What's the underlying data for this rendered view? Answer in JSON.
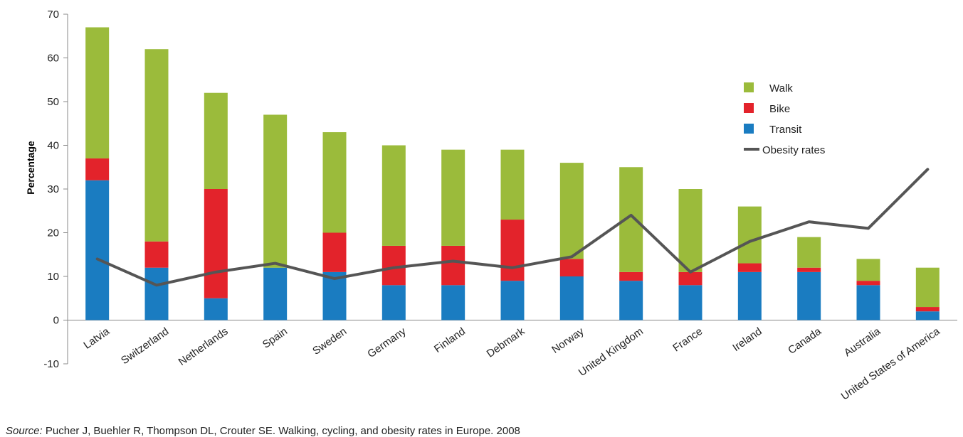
{
  "chart_data": {
    "type": "bar",
    "stacked": true,
    "title": "",
    "xlabel": "",
    "ylabel": "Percentage",
    "ylim": [
      -10,
      70
    ],
    "yticks": [
      -10,
      0,
      10,
      20,
      30,
      40,
      50,
      60,
      70
    ],
    "categories": [
      "Latvia",
      "Switzerland",
      "Netherlands",
      "Spain",
      "Sweden",
      "Germany",
      "Finland",
      "Debmark",
      "Norway",
      "United Kingdom",
      "France",
      "Ireland",
      "Canada",
      "Australia",
      "United States of America"
    ],
    "series": [
      {
        "name": "Transit",
        "kind": "bar",
        "color": "#1a7cc1",
        "values": [
          32,
          12,
          5,
          12,
          11,
          8,
          8,
          9,
          10,
          9,
          8,
          11,
          11,
          8,
          2
        ]
      },
      {
        "name": "Bike",
        "kind": "bar",
        "color": "#e3232b",
        "values": [
          5,
          6,
          25,
          0,
          9,
          9,
          9,
          14,
          4,
          2,
          3,
          2,
          1,
          1,
          1
        ]
      },
      {
        "name": "Walk",
        "kind": "bar",
        "color": "#9bbb3b",
        "values": [
          30,
          44,
          22,
          35,
          23,
          23,
          22,
          16,
          22,
          24,
          19,
          13,
          7,
          5,
          9
        ]
      },
      {
        "name": "Obesity rates",
        "kind": "line",
        "color": "#555555",
        "values": [
          14,
          8,
          11,
          13,
          9.5,
          12,
          13.5,
          12,
          14.5,
          24,
          11,
          18,
          22.5,
          21,
          34.5
        ]
      }
    ],
    "legend": {
      "position": "right",
      "order": [
        "Walk",
        "Bike",
        "Transit",
        "Obesity rates"
      ]
    },
    "grid": false
  },
  "source": {
    "label": "Source:",
    "text": "Pucher J, Buehler R, Thompson DL, Crouter SE. Walking, cycling, and obesity rates in Europe. 2008"
  }
}
